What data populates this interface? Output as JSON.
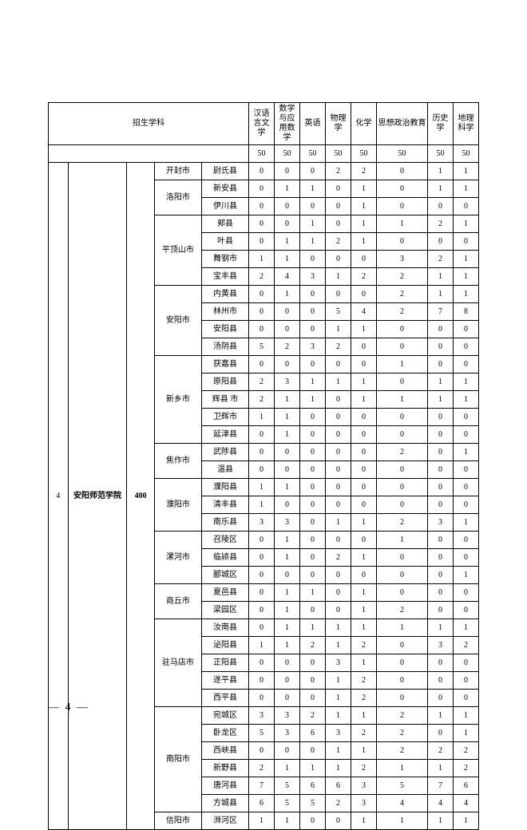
{
  "header": {
    "school_col_label": "招生学科",
    "subjects": [
      "汉语言文学",
      "数学与应用数学",
      "英语",
      "物理学",
      "化学",
      "思想政治教育",
      "历史学",
      "地理科学"
    ],
    "quotas": [
      "50",
      "50",
      "50",
      "50",
      "50",
      "50",
      "50",
      "50"
    ]
  },
  "index": "4",
  "school": "安阳师范学院",
  "total": "400",
  "page_number": "— 4 —",
  "colors": {
    "border": "#000000",
    "background": "#ffffff",
    "text": "#000000"
  },
  "font_sizes": {
    "table": 10,
    "page_num": 14
  },
  "cities": [
    {
      "name": "开封市",
      "counties": [
        {
          "n": "尉氏县",
          "v": [
            "0",
            "0",
            "0",
            "2",
            "2",
            "0",
            "1",
            "1"
          ]
        }
      ]
    },
    {
      "name": "洛阳市",
      "counties": [
        {
          "n": "新安县",
          "v": [
            "0",
            "1",
            "1",
            "0",
            "1",
            "0",
            "1",
            "1"
          ]
        },
        {
          "n": "伊川县",
          "v": [
            "0",
            "0",
            "0",
            "0",
            "1",
            "0",
            "0",
            "0"
          ]
        }
      ]
    },
    {
      "name": "平顶山市",
      "counties": [
        {
          "n": "郏县",
          "v": [
            "0",
            "0",
            "1",
            "0",
            "1",
            "1",
            "2",
            "1"
          ]
        },
        {
          "n": "叶县",
          "v": [
            "0",
            "1",
            "1",
            "2",
            "1",
            "0",
            "0",
            "0"
          ]
        },
        {
          "n": "舞钢市",
          "v": [
            "1",
            "1",
            "0",
            "0",
            "0",
            "3",
            "2",
            "1"
          ]
        },
        {
          "n": "宝丰县",
          "v": [
            "2",
            "4",
            "3",
            "1",
            "2",
            "2",
            "1",
            "1"
          ]
        }
      ]
    },
    {
      "name": "安阳市",
      "counties": [
        {
          "n": "内黄县",
          "v": [
            "0",
            "1",
            "0",
            "0",
            "0",
            "2",
            "1",
            "1"
          ]
        },
        {
          "n": "林州市",
          "v": [
            "0",
            "0",
            "0",
            "5",
            "4",
            "2",
            "7",
            "8"
          ]
        },
        {
          "n": "安阳县",
          "v": [
            "0",
            "0",
            "0",
            "1",
            "1",
            "0",
            "0",
            "0"
          ]
        },
        {
          "n": "汤阴县",
          "v": [
            "5",
            "2",
            "3",
            "2",
            "0",
            "0",
            "0",
            "0"
          ]
        }
      ]
    },
    {
      "name": "新乡市",
      "counties": [
        {
          "n": "获嘉县",
          "v": [
            "0",
            "0",
            "0",
            "0",
            "0",
            "1",
            "0",
            "0"
          ]
        },
        {
          "n": "原阳县",
          "v": [
            "2",
            "3",
            "1",
            "1",
            "1",
            "0",
            "1",
            "1"
          ]
        },
        {
          "n": "辉县 市",
          "v": [
            "2",
            "1",
            "1",
            "0",
            "1",
            "1",
            "1",
            "1"
          ]
        },
        {
          "n": "卫辉市",
          "v": [
            "1",
            "1",
            "0",
            "0",
            "0",
            "0",
            "0",
            "0"
          ]
        },
        {
          "n": "延津县",
          "v": [
            "0",
            "1",
            "0",
            "0",
            "0",
            "0",
            "0",
            "0"
          ]
        }
      ]
    },
    {
      "name": "焦作市",
      "counties": [
        {
          "n": "武陟县",
          "v": [
            "0",
            "0",
            "0",
            "0",
            "0",
            "2",
            "0",
            "1"
          ]
        },
        {
          "n": "温县",
          "v": [
            "0",
            "0",
            "0",
            "0",
            "0",
            "0",
            "0",
            "0"
          ]
        }
      ]
    },
    {
      "name": "濮阳市",
      "counties": [
        {
          "n": "濮阳县",
          "v": [
            "1",
            "1",
            "0",
            "0",
            "0",
            "0",
            "0",
            "0"
          ]
        },
        {
          "n": "清丰县",
          "v": [
            "1",
            "0",
            "0",
            "0",
            "0",
            "0",
            "0",
            "0"
          ]
        },
        {
          "n": "南乐县",
          "v": [
            "3",
            "3",
            "0",
            "1",
            "1",
            "2",
            "3",
            "1"
          ]
        }
      ]
    },
    {
      "name": "漯河市",
      "counties": [
        {
          "n": "召陵区",
          "v": [
            "0",
            "1",
            "0",
            "0",
            "0",
            "1",
            "0",
            "0"
          ]
        },
        {
          "n": "临颍县",
          "v": [
            "0",
            "1",
            "0",
            "2",
            "1",
            "0",
            "0",
            "0"
          ]
        },
        {
          "n": "郾城区",
          "v": [
            "0",
            "0",
            "0",
            "0",
            "0",
            "0",
            "0",
            "1"
          ]
        }
      ]
    },
    {
      "name": "商丘市",
      "counties": [
        {
          "n": "夏邑县",
          "v": [
            "0",
            "1",
            "1",
            "0",
            "1",
            "0",
            "0",
            "0"
          ]
        },
        {
          "n": "梁园区",
          "v": [
            "0",
            "1",
            "0",
            "0",
            "1",
            "2",
            "0",
            "0"
          ]
        }
      ]
    },
    {
      "name": "驻马店市",
      "counties": [
        {
          "n": "汝南县",
          "v": [
            "0",
            "1",
            "1",
            "1",
            "1",
            "1",
            "1",
            "1"
          ]
        },
        {
          "n": "泌阳县",
          "v": [
            "1",
            "1",
            "2",
            "1",
            "2",
            "0",
            "3",
            "2"
          ]
        },
        {
          "n": "正阳县",
          "v": [
            "0",
            "0",
            "0",
            "3",
            "1",
            "0",
            "0",
            "0"
          ]
        },
        {
          "n": "遂平县",
          "v": [
            "0",
            "0",
            "0",
            "1",
            "2",
            "0",
            "0",
            "0"
          ]
        },
        {
          "n": "西平县",
          "v": [
            "0",
            "0",
            "0",
            "1",
            "2",
            "0",
            "0",
            "0"
          ]
        }
      ]
    },
    {
      "name": "南阳市",
      "counties": [
        {
          "n": "宛城区",
          "v": [
            "3",
            "3",
            "2",
            "1",
            "1",
            "2",
            "1",
            "1"
          ]
        },
        {
          "n": "卧龙区",
          "v": [
            "5",
            "3",
            "6",
            "3",
            "2",
            "2",
            "0",
            "1"
          ]
        },
        {
          "n": "西峡县",
          "v": [
            "0",
            "0",
            "0",
            "1",
            "1",
            "2",
            "2",
            "2"
          ]
        },
        {
          "n": "新野县",
          "v": [
            "2",
            "1",
            "1",
            "1",
            "2",
            "1",
            "1",
            "2"
          ]
        },
        {
          "n": "唐河县",
          "v": [
            "7",
            "5",
            "6",
            "6",
            "3",
            "5",
            "7",
            "6"
          ]
        },
        {
          "n": "方城县",
          "v": [
            "6",
            "5",
            "5",
            "2",
            "3",
            "4",
            "4",
            "4"
          ]
        }
      ]
    },
    {
      "name": "信阳市",
      "counties": [
        {
          "n": "浉河区",
          "v": [
            "1",
            "1",
            "0",
            "0",
            "1",
            "1",
            "1",
            "1"
          ]
        }
      ]
    }
  ]
}
